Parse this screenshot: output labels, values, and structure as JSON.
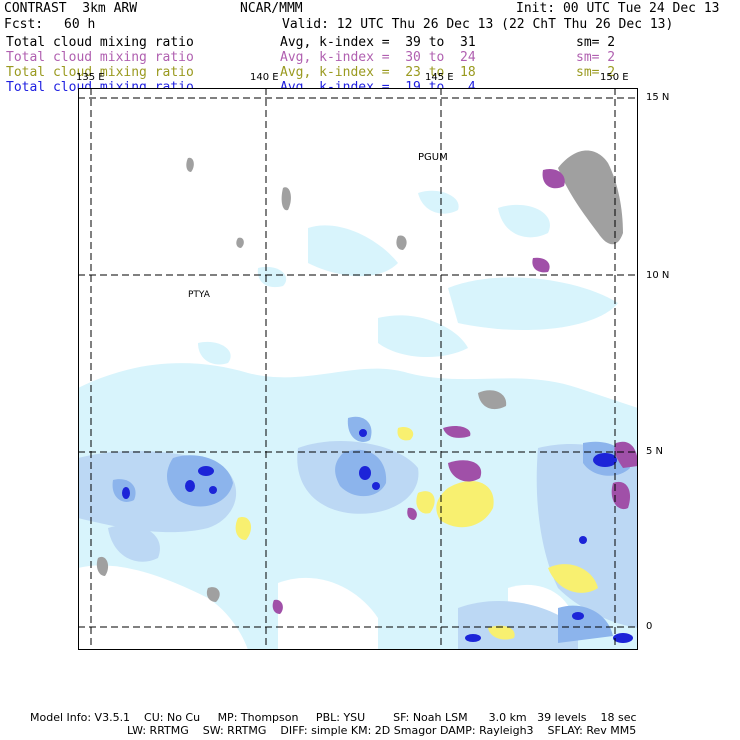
{
  "header": {
    "product": "CONTRAST  3km ARW",
    "center": "NCAR/MMM",
    "init": "Init: 00 UTC Tue 24 Dec 13",
    "fcst_label": "Fcst:",
    "fcst_value": "60 h",
    "valid": "Valid: 12 UTC Thu 26 Dec 13 (22 ChT Thu 26 Dec 13)"
  },
  "fields": [
    {
      "name": "Total cloud mixing ratio",
      "range": "Avg, k-index =  39 to  31",
      "sm": "sm= 2",
      "color": "#000000"
    },
    {
      "name": "Total cloud mixing ratio",
      "range": "Avg, k-index =  30 to  24",
      "sm": "sm= 2",
      "color": "#b060b0"
    },
    {
      "name": "Total cloud mixing ratio",
      "range": "Avg, k-index =  23 to  18",
      "sm": "sm= 2",
      "color": "#9a9a20"
    },
    {
      "name": "Total cloud mixing ratio",
      "range": "Avg, k-index =  19 to   4",
      "sm": "",
      "color": "#2020e0"
    }
  ],
  "map": {
    "lon_labels": [
      "135 E",
      "140 E",
      "145 E",
      "150 E"
    ],
    "lat_labels": [
      "15 N",
      "10 N",
      "5 N",
      "0"
    ],
    "stations": [
      "PGUM",
      "PTYA"
    ]
  },
  "footer": {
    "line1": "Model Info: V3.5.1    CU: No Cu     MP: Thompson     PBL: YSU        SF: Noah LSM      3.0 km   39 levels    18 sec",
    "line2": "LW: RRTMG    SW: RRTMG    DIFF: simple KM: 2D Smagor DAMP: Rayleigh3    SFLAY: Rev MM5"
  },
  "colors": {
    "gray": "#a0a0a0",
    "purple": "#a050a8",
    "yellow": "#f8f070",
    "light_cyan": "#d8f4fc",
    "light_blue": "#bcd8f4",
    "mid_blue": "#8cb4ec",
    "blue": "#4c64e0",
    "dark_blue": "#1c24d8"
  }
}
